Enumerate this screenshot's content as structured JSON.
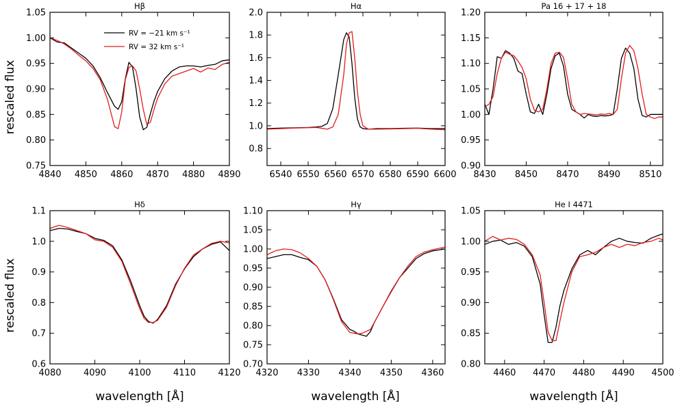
{
  "figure": {
    "ylabel": "rescaled flux",
    "xlabel": "wavelength [Å]",
    "legend": [
      {
        "label": "RV = −21 km s⁻¹",
        "color": "#000000"
      },
      {
        "label": "RV = 32 km s⁻¹",
        "color": "#e31a1c"
      }
    ]
  },
  "chart_data": [
    {
      "type": "line",
      "title": "Hβ",
      "xlim": [
        4840,
        4890
      ],
      "ylim": [
        0.75,
        1.05
      ],
      "xticks": [
        4840,
        4850,
        4860,
        4870,
        4880,
        4890
      ],
      "yticks": [
        0.75,
        0.8,
        0.85,
        0.9,
        0.95,
        1.0,
        1.05
      ],
      "ytick_decimals": 2,
      "legend_position": "top-center",
      "series": [
        {
          "name": "RV = −21 km s⁻¹",
          "color": "#000000",
          "x": [
            4840,
            4842,
            4844,
            4846,
            4848,
            4850,
            4852,
            4854,
            4856,
            4858,
            4859,
            4860,
            4861,
            4862,
            4863,
            4864,
            4865,
            4866,
            4867,
            4868,
            4869,
            4870,
            4872,
            4874,
            4876,
            4878,
            4880,
            4882,
            4884,
            4886,
            4888,
            4890
          ],
          "y": [
            1.0,
            0.992,
            0.99,
            0.98,
            0.97,
            0.96,
            0.945,
            0.922,
            0.893,
            0.866,
            0.86,
            0.875,
            0.92,
            0.952,
            0.943,
            0.9,
            0.845,
            0.82,
            0.825,
            0.852,
            0.876,
            0.895,
            0.92,
            0.935,
            0.943,
            0.945,
            0.945,
            0.943,
            0.946,
            0.948,
            0.955,
            0.957
          ]
        },
        {
          "name": "RV = 32 km s⁻¹",
          "color": "#e31a1c",
          "x": [
            4840,
            4842,
            4844,
            4846,
            4848,
            4850,
            4852,
            4854,
            4856,
            4858,
            4859,
            4860,
            4861,
            4862,
            4863,
            4864,
            4865,
            4866,
            4867,
            4868,
            4869,
            4870,
            4872,
            4874,
            4876,
            4878,
            4880,
            4882,
            4884,
            4886,
            4888,
            4890
          ],
          "y": [
            1.0,
            0.995,
            0.988,
            0.978,
            0.966,
            0.955,
            0.94,
            0.918,
            0.88,
            0.826,
            0.822,
            0.855,
            0.918,
            0.942,
            0.945,
            0.935,
            0.9,
            0.86,
            0.83,
            0.835,
            0.86,
            0.882,
            0.91,
            0.925,
            0.93,
            0.935,
            0.94,
            0.933,
            0.941,
            0.938,
            0.948,
            0.952
          ]
        }
      ]
    },
    {
      "type": "line",
      "title": "Hα",
      "xlim": [
        6535,
        6600
      ],
      "ylim": [
        0.65,
        2.0
      ],
      "xticks": [
        6540,
        6550,
        6560,
        6570,
        6580,
        6590,
        6600
      ],
      "yticks": [
        0.8,
        1.0,
        1.2,
        1.4,
        1.6,
        1.8,
        2.0
      ],
      "ytick_decimals": 1,
      "series": [
        {
          "name": "RV = −21 km s⁻¹",
          "color": "#000000",
          "x": [
            6535,
            6540,
            6545,
            6550,
            6553,
            6555,
            6557,
            6559,
            6561,
            6563,
            6564,
            6565,
            6566,
            6567,
            6568,
            6569,
            6570,
            6572,
            6575,
            6580,
            6585,
            6590,
            6595,
            6600
          ],
          "y": [
            0.975,
            0.98,
            0.982,
            0.985,
            0.99,
            0.995,
            1.02,
            1.15,
            1.45,
            1.76,
            1.82,
            1.78,
            1.55,
            1.25,
            1.06,
            0.99,
            0.975,
            0.97,
            0.975,
            0.975,
            0.978,
            0.98,
            0.975,
            0.975
          ]
        },
        {
          "name": "RV = 32 km s⁻¹",
          "color": "#e31a1c",
          "x": [
            6535,
            6540,
            6545,
            6550,
            6553,
            6555,
            6557,
            6559,
            6561,
            6563,
            6564,
            6565,
            6566,
            6567,
            6568,
            6569,
            6570,
            6572,
            6575,
            6580,
            6585,
            6590,
            6595,
            6600
          ],
          "y": [
            0.97,
            0.975,
            0.98,
            0.983,
            0.985,
            0.978,
            0.97,
            0.99,
            1.1,
            1.45,
            1.72,
            1.82,
            1.83,
            1.6,
            1.3,
            1.1,
            1.0,
            0.97,
            0.97,
            0.972,
            0.975,
            0.978,
            0.97,
            0.965
          ]
        }
      ]
    },
    {
      "type": "line",
      "title": "Pa 16 + 17 + 18",
      "xlim": [
        8430,
        8516
      ],
      "ylim": [
        0.9,
        1.2
      ],
      "xticks": [
        8430,
        8450,
        8470,
        8490,
        8510
      ],
      "yticks": [
        0.9,
        0.95,
        1.0,
        1.05,
        1.1,
        1.15,
        1.2
      ],
      "ytick_decimals": 2,
      "series": [
        {
          "name": "RV = −21 km s⁻¹",
          "color": "#000000",
          "x": [
            8430,
            8432,
            8434,
            8436,
            8438,
            8440,
            8442,
            8444,
            8446,
            8448,
            8450,
            8452,
            8454,
            8456,
            8458,
            8460,
            8462,
            8464,
            8466,
            8468,
            8470,
            8472,
            8474,
            8476,
            8478,
            8480,
            8482,
            8484,
            8486,
            8488,
            8490,
            8492,
            8494,
            8496,
            8498,
            8500,
            8502,
            8504,
            8506,
            8508,
            8510,
            8512,
            8514,
            8516
          ],
          "y": [
            1.02,
            1.0,
            1.05,
            1.113,
            1.11,
            1.125,
            1.12,
            1.11,
            1.085,
            1.08,
            1.04,
            1.005,
            1.002,
            1.02,
            1.0,
            1.04,
            1.09,
            1.115,
            1.12,
            1.095,
            1.04,
            1.01,
            1.005,
            1.0,
            0.993,
            1.0,
            0.997,
            0.996,
            0.998,
            0.997,
            0.998,
            1.0,
            1.05,
            1.11,
            1.13,
            1.12,
            1.09,
            1.03,
            0.998,
            0.995,
            1.0,
            1.0,
            1.0,
            1.0
          ]
        },
        {
          "name": "RV = 32 km s⁻¹",
          "color": "#e31a1c",
          "x": [
            8430,
            8432,
            8434,
            8436,
            8438,
            8440,
            8442,
            8444,
            8446,
            8448,
            8450,
            8452,
            8454,
            8456,
            8458,
            8460,
            8462,
            8464,
            8466,
            8468,
            8470,
            8472,
            8474,
            8476,
            8478,
            8480,
            8482,
            8484,
            8486,
            8488,
            8490,
            8492,
            8494,
            8496,
            8498,
            8500,
            8502,
            8504,
            8506,
            8508,
            8510,
            8512,
            8514,
            8516
          ],
          "y": [
            1.015,
            1.02,
            1.035,
            1.08,
            1.11,
            1.122,
            1.118,
            1.115,
            1.105,
            1.092,
            1.07,
            1.03,
            1.008,
            1.005,
            1.01,
            1.05,
            1.1,
            1.12,
            1.122,
            1.112,
            1.07,
            1.02,
            1.005,
            1.0,
            1.002,
            1.001,
            1.0,
            0.999,
            1.001,
            1.0,
            1.002,
            1.0,
            1.01,
            1.07,
            1.12,
            1.135,
            1.125,
            1.09,
            1.04,
            1.0,
            0.995,
            0.992,
            0.995,
            0.995
          ]
        }
      ]
    },
    {
      "type": "line",
      "title": "Hδ",
      "xlim": [
        4080,
        4120
      ],
      "ylim": [
        0.6,
        1.1
      ],
      "xticks": [
        4080,
        4090,
        4100,
        4110,
        4120
      ],
      "yticks": [
        0.6,
        0.7,
        0.8,
        0.9,
        1.0,
        1.1
      ],
      "ytick_decimals": 1,
      "series": [
        {
          "name": "RV = −21 km s⁻¹",
          "color": "#000000",
          "x": [
            4080,
            4082,
            4084,
            4086,
            4088,
            4090,
            4092,
            4094,
            4096,
            4098,
            4100,
            4101,
            4102,
            4103,
            4104,
            4106,
            4108,
            4110,
            4112,
            4114,
            4116,
            4118,
            4120
          ],
          "y": [
            1.035,
            1.042,
            1.04,
            1.032,
            1.025,
            1.01,
            1.003,
            0.985,
            0.94,
            0.87,
            0.79,
            0.755,
            0.738,
            0.733,
            0.745,
            0.79,
            0.86,
            0.91,
            0.95,
            0.975,
            0.99,
            0.998,
            0.97
          ]
        },
        {
          "name": "RV = 32 km s⁻¹",
          "color": "#e31a1c",
          "x": [
            4080,
            4082,
            4084,
            4086,
            4088,
            4090,
            4092,
            4094,
            4096,
            4098,
            4100,
            4101,
            4102,
            4103,
            4104,
            4106,
            4108,
            4110,
            4112,
            4114,
            4116,
            4118,
            4120
          ],
          "y": [
            1.042,
            1.052,
            1.045,
            1.035,
            1.025,
            1.005,
            1.0,
            0.98,
            0.935,
            0.86,
            0.78,
            0.748,
            0.735,
            0.735,
            0.742,
            0.785,
            0.855,
            0.912,
            0.955,
            0.975,
            0.993,
            1.0,
            0.995
          ]
        }
      ]
    },
    {
      "type": "line",
      "title": "Hγ",
      "xlim": [
        4320,
        4363
      ],
      "ylim": [
        0.7,
        1.1
      ],
      "xticks": [
        4320,
        4330,
        4340,
        4350,
        4360
      ],
      "yticks": [
        0.7,
        0.75,
        0.8,
        0.85,
        0.9,
        0.95,
        1.0,
        1.05,
        1.1
      ],
      "ytick_decimals": 2,
      "series": [
        {
          "name": "RV = −21 km s⁻¹",
          "color": "#000000",
          "x": [
            4320,
            4322,
            4324,
            4326,
            4328,
            4330,
            4332,
            4334,
            4336,
            4338,
            4340,
            4341,
            4342,
            4343,
            4344,
            4345,
            4346,
            4348,
            4350,
            4352,
            4354,
            4356,
            4358,
            4360,
            4363
          ],
          "y": [
            0.975,
            0.98,
            0.985,
            0.985,
            0.978,
            0.972,
            0.955,
            0.92,
            0.87,
            0.815,
            0.79,
            0.785,
            0.778,
            0.775,
            0.772,
            0.785,
            0.81,
            0.85,
            0.89,
            0.925,
            0.95,
            0.975,
            0.988,
            0.995,
            1.0
          ]
        },
        {
          "name": "RV = 32 km s⁻¹",
          "color": "#e31a1c",
          "x": [
            4320,
            4322,
            4324,
            4326,
            4328,
            4330,
            4332,
            4334,
            4336,
            4338,
            4340,
            4341,
            4342,
            4343,
            4344,
            4345,
            4346,
            4348,
            4350,
            4352,
            4354,
            4356,
            4358,
            4360,
            4363
          ],
          "y": [
            0.985,
            0.995,
            1.0,
            0.998,
            0.99,
            0.975,
            0.955,
            0.92,
            0.868,
            0.81,
            0.782,
            0.78,
            0.778,
            0.78,
            0.785,
            0.79,
            0.81,
            0.85,
            0.888,
            0.925,
            0.955,
            0.98,
            0.992,
            0.998,
            1.005
          ]
        }
      ]
    },
    {
      "type": "line",
      "title": "He I 4471",
      "xlim": [
        4455,
        4500
      ],
      "ylim": [
        0.8,
        1.05
      ],
      "xticks": [
        4460,
        4470,
        4480,
        4490,
        4500
      ],
      "yticks": [
        0.8,
        0.85,
        0.9,
        0.95,
        1.0,
        1.05
      ],
      "ytick_decimals": 2,
      "series": [
        {
          "name": "RV = −21 km s⁻¹",
          "color": "#000000",
          "x": [
            4455,
            4457,
            4459,
            4461,
            4463,
            4465,
            4467,
            4469,
            4470,
            4471,
            4472,
            4473,
            4474,
            4475,
            4477,
            4479,
            4481,
            4483,
            4485,
            4487,
            4489,
            4491,
            4493,
            4495,
            4497,
            4499,
            4500
          ],
          "y": [
            0.995,
            1.0,
            1.002,
            0.995,
            0.998,
            0.992,
            0.975,
            0.93,
            0.88,
            0.835,
            0.835,
            0.86,
            0.895,
            0.92,
            0.955,
            0.978,
            0.985,
            0.978,
            0.99,
            1.0,
            1.005,
            1.0,
            0.998,
            0.997,
            1.005,
            1.01,
            1.012
          ]
        },
        {
          "name": "RV = 32 km s⁻¹",
          "color": "#e31a1c",
          "x": [
            4455,
            4457,
            4459,
            4461,
            4463,
            4465,
            4467,
            4469,
            4470,
            4471,
            4472,
            4473,
            4474,
            4475,
            4477,
            4479,
            4481,
            4483,
            4485,
            4487,
            4489,
            4491,
            4493,
            4495,
            4497,
            4499,
            4500
          ],
          "y": [
            1.0,
            1.008,
            1.002,
            1.005,
            1.003,
            0.995,
            0.978,
            0.945,
            0.9,
            0.852,
            0.838,
            0.838,
            0.87,
            0.9,
            0.95,
            0.975,
            0.978,
            0.982,
            0.99,
            0.995,
            0.99,
            0.995,
            0.993,
            0.998,
            1.0,
            1.005,
            1.002
          ]
        }
      ]
    }
  ]
}
